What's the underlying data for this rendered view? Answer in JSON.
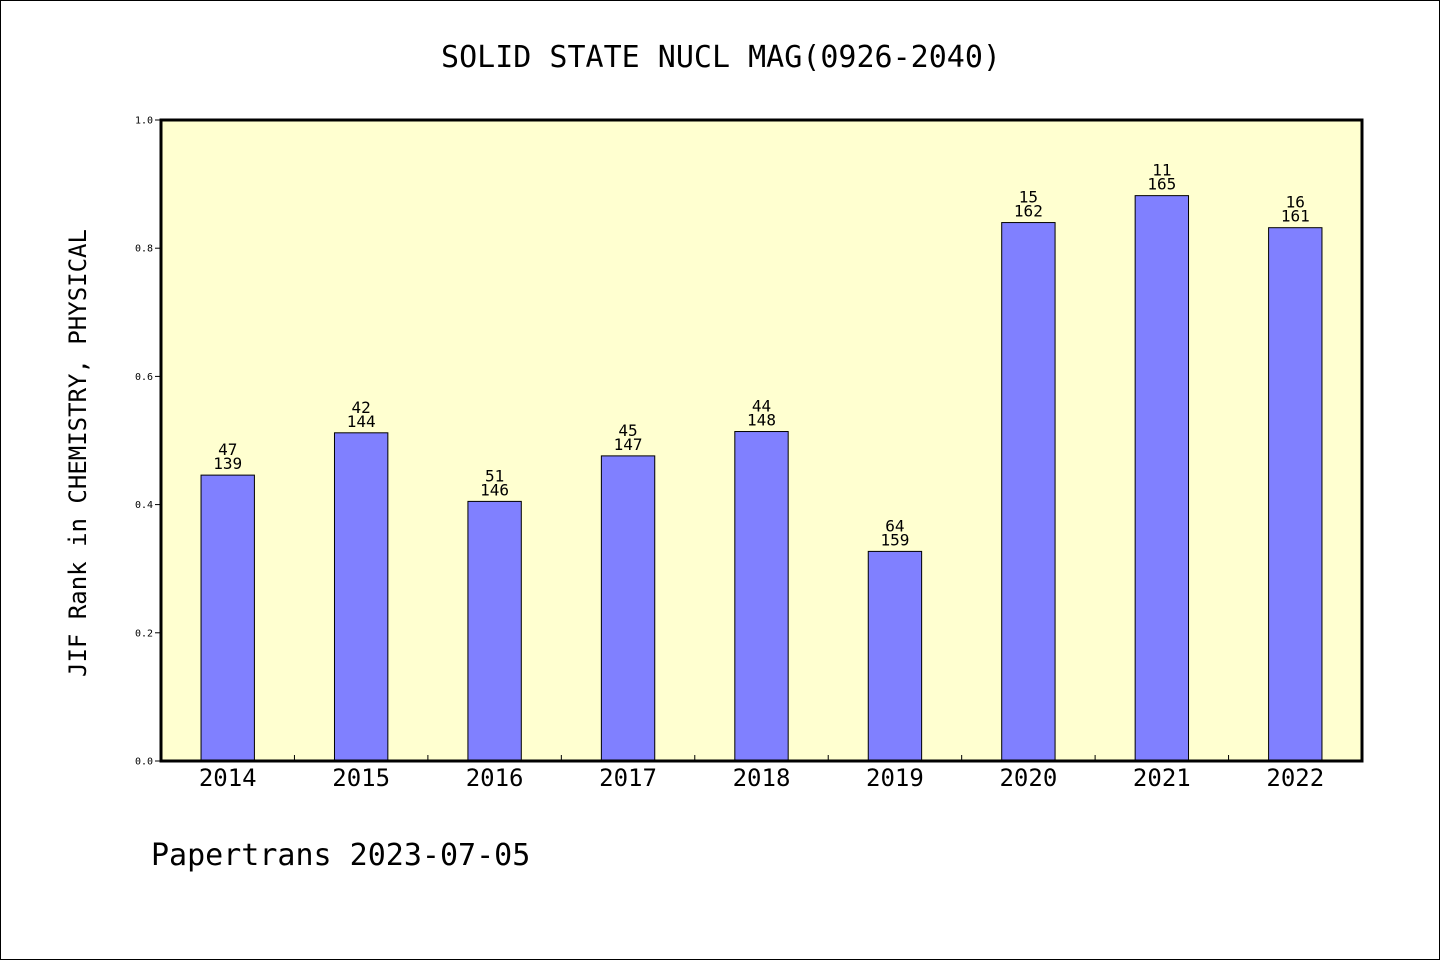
{
  "chart_data": {
    "type": "bar",
    "title": "SOLID STATE NUCL MAG(0926-2040)",
    "xlabel": "",
    "ylabel": "JIF Rank in CHEMISTRY, PHYSICAL",
    "ylim": [
      0,
      1
    ],
    "yticks": [
      "0.0",
      "0.2",
      "0.4",
      "0.6",
      "0.8",
      "1.0"
    ],
    "grid": false,
    "legend": "none",
    "categories": [
      "2014",
      "2015",
      "2016",
      "2017",
      "2018",
      "2019",
      "2020",
      "2021",
      "2022"
    ],
    "values": [
      0.446,
      0.512,
      0.405,
      0.476,
      0.514,
      0.327,
      0.84,
      0.882,
      0.832
    ],
    "rank_labels": [
      "47",
      "42",
      "51",
      "45",
      "44",
      "64",
      "15",
      "11",
      "16"
    ],
    "total_labels": [
      "139",
      "144",
      "146",
      "147",
      "148",
      "159",
      "162",
      "165",
      "161"
    ],
    "colors": {
      "bar": "#8080ff",
      "plot_background": "#ffffd0"
    }
  },
  "footer": {
    "text": "Papertrans 2023-07-05"
  }
}
